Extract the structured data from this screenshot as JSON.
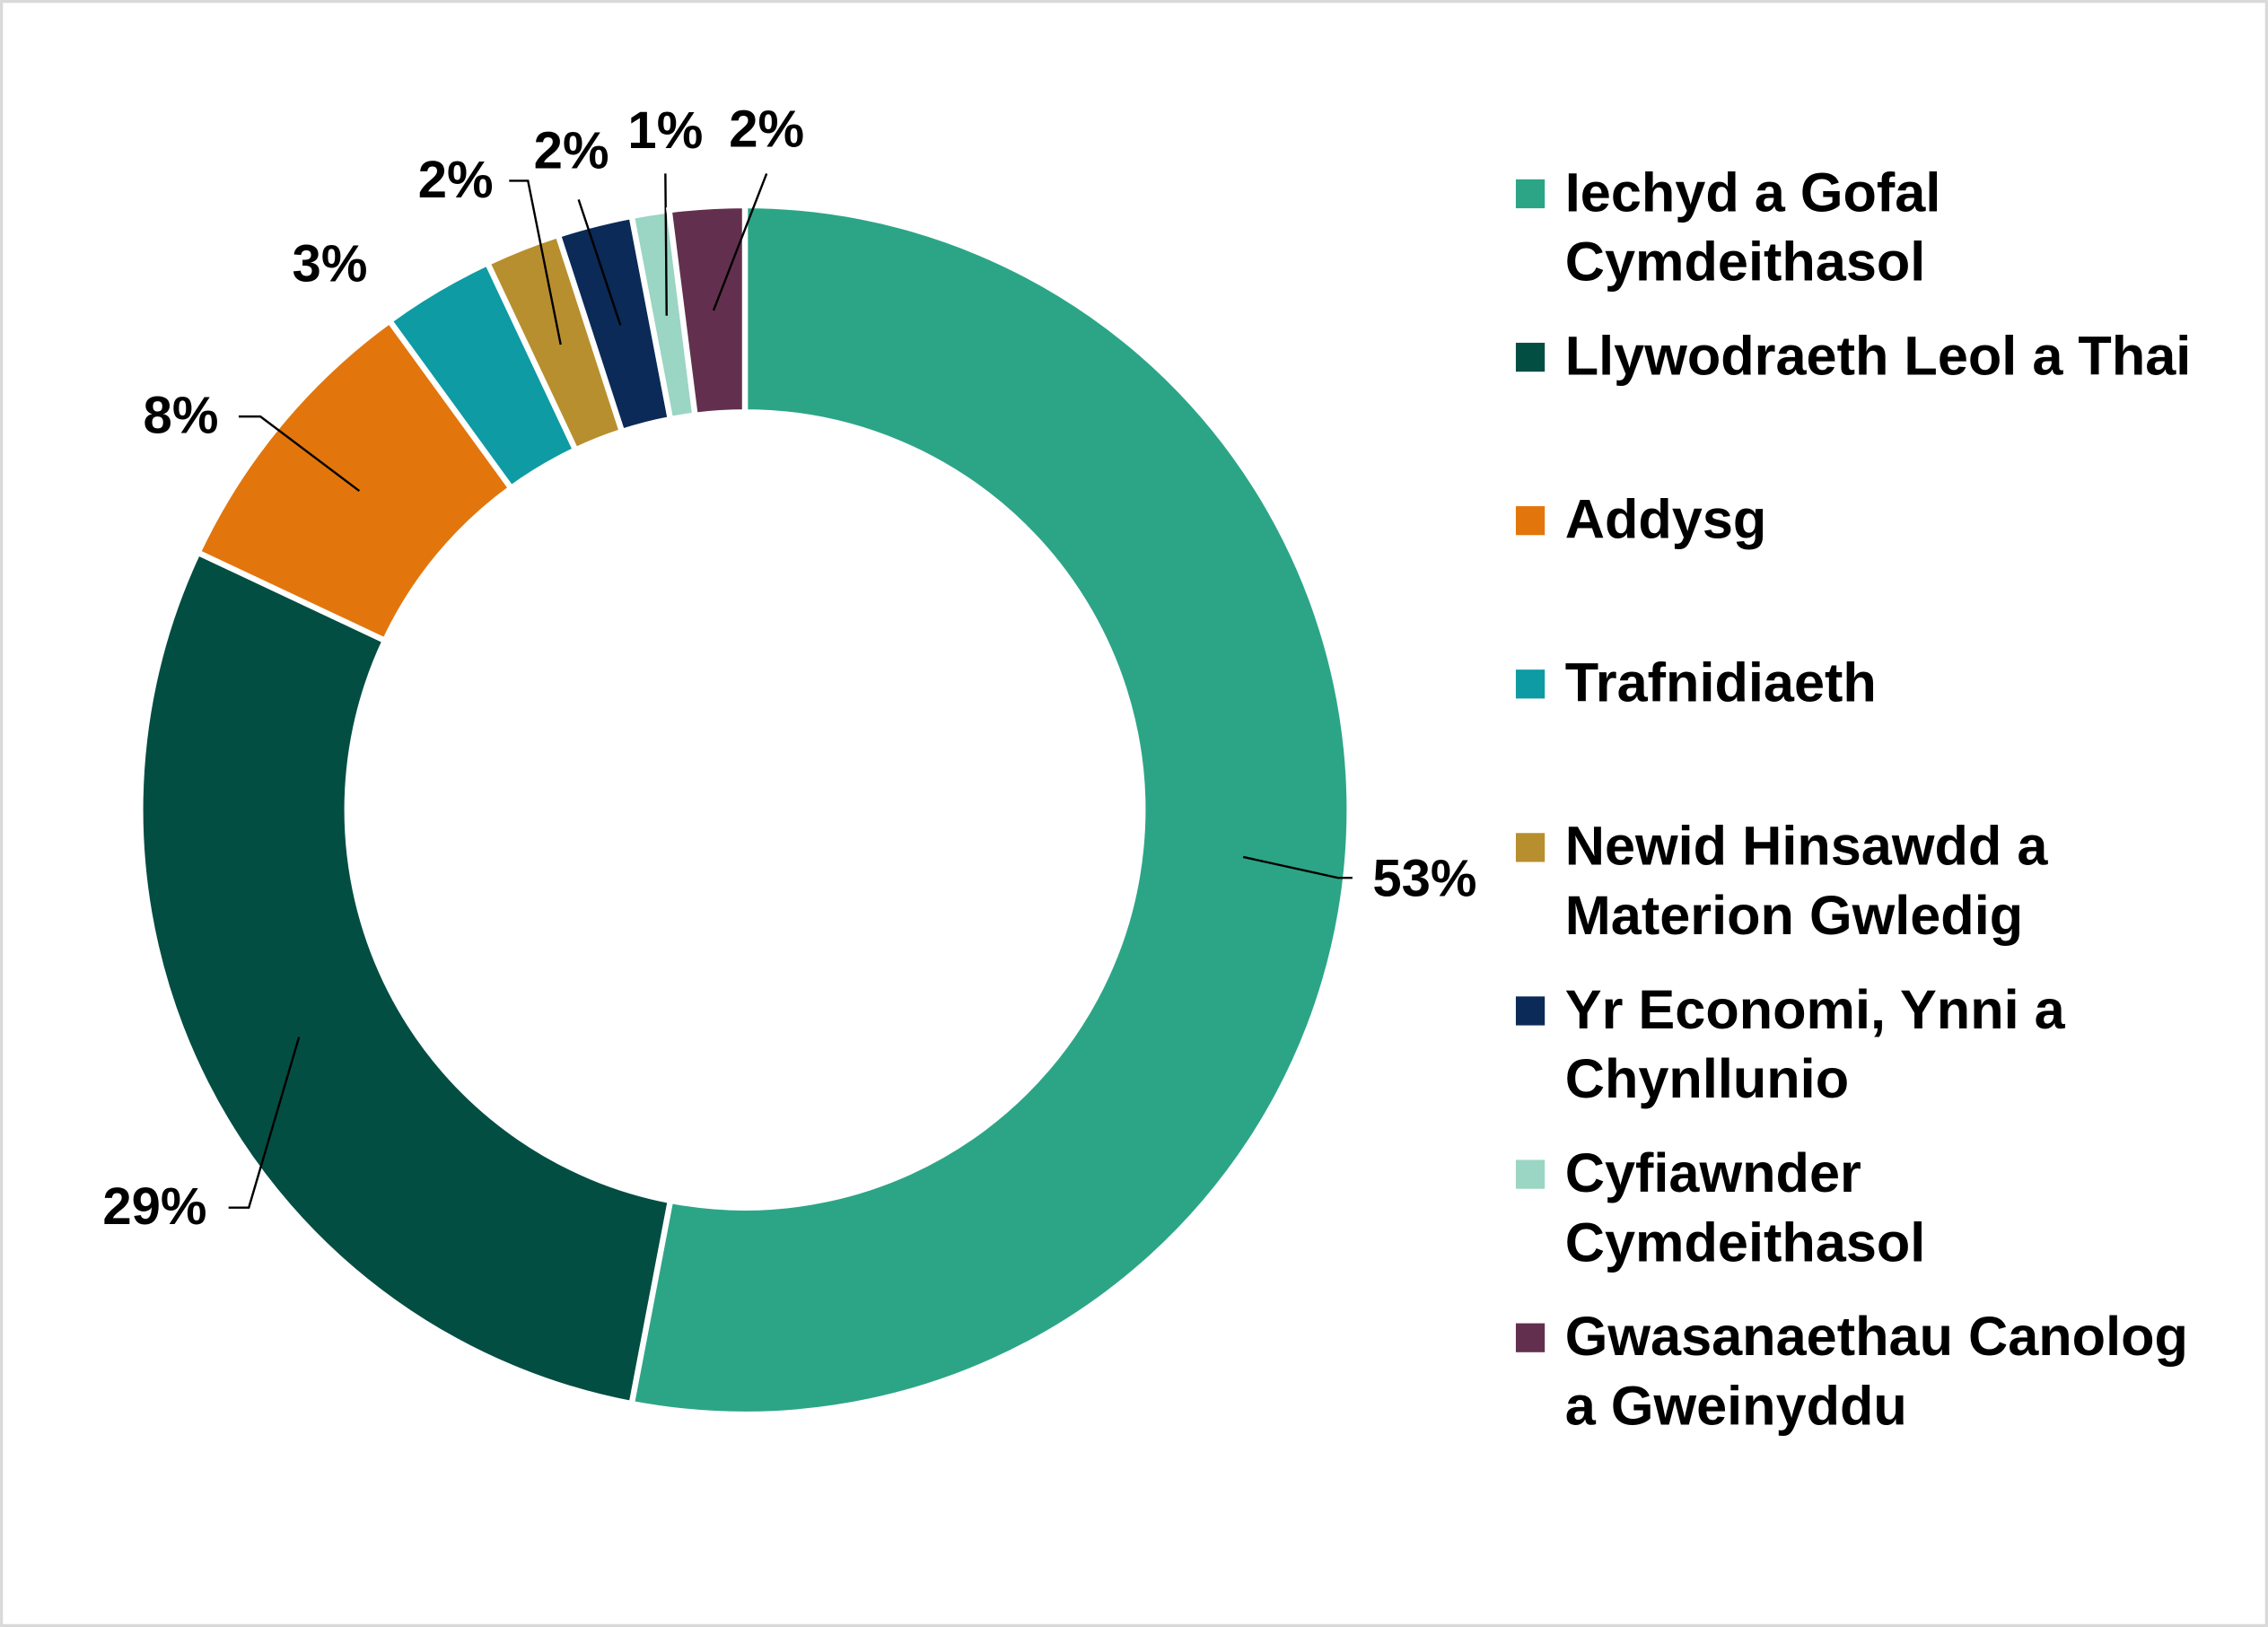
{
  "chart_data": {
    "type": "donut",
    "categories": [
      "Iechyd a Gofal Cymdeithasol",
      "Llywodraeth Leol a Thai",
      "Addysg",
      "Trafnidiaeth",
      "Newid Hinsawdd a Materion Gwledig",
      "Yr Economi, Ynni a Chynllunio",
      "Cyfiawnder Cymdeithasol",
      "Gwasanaethau Canolog a Gweinyddu"
    ],
    "values": [
      53,
      29,
      8,
      3,
      2,
      2,
      1,
      2
    ],
    "value_labels": [
      "53%",
      "29%",
      "8%",
      "3%",
      "2%",
      "2%",
      "1%",
      "2%"
    ],
    "colors": [
      "#2ca587",
      "#034e43",
      "#e2760c",
      "#0e9ba3",
      "#b88f2e",
      "#0b2a57",
      "#9bd5c3",
      "#62304e"
    ],
    "legend": "right"
  }
}
